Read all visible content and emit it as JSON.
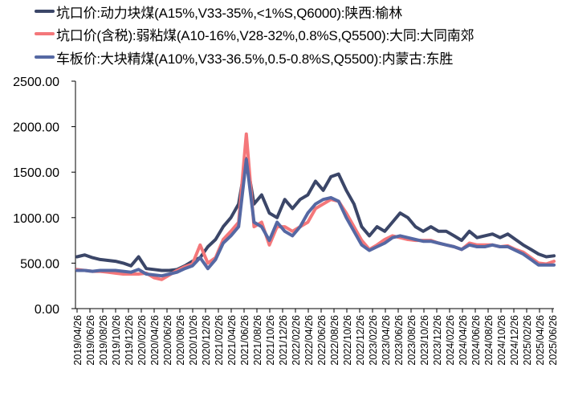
{
  "chart_data": {
    "type": "line",
    "title": "",
    "xlabel": "",
    "ylabel": "",
    "ylim": [
      0,
      2500
    ],
    "yticks": [
      "0.00",
      "500.00",
      "1000.00",
      "1500.00",
      "2000.00",
      "2500.00"
    ],
    "grid": false,
    "legend_position": "top",
    "x_tick_labels": [
      "2019/04/26",
      "2019/06/26",
      "2019/08/26",
      "2019/10/26",
      "2019/12/26",
      "2020/02/26",
      "2020/04/26",
      "2020/06/26",
      "2020/08/26",
      "2020/10/26",
      "2020/12/26",
      "2021/02/26",
      "2021/04/26",
      "2021/06/26",
      "2021/08/26",
      "2021/10/26",
      "2021/12/26",
      "2022/02/26",
      "2022/04/26",
      "2022/06/26",
      "2022/08/26",
      "2022/10/26",
      "2022/12/26",
      "2023/02/26",
      "2023/04/26",
      "2023/06/26",
      "2023/08/26",
      "2023/10/26",
      "2023/12/26",
      "2024/02/26",
      "2024/04/26",
      "2024/06/26",
      "2024/08/26",
      "2024/10/26",
      "2024/12/26",
      "2025/02/26",
      "2025/04/26",
      "2025/06/26"
    ],
    "x_months": [
      0,
      2,
      4,
      6,
      8,
      10,
      12,
      14,
      16,
      18,
      20,
      22,
      24,
      26,
      28,
      30,
      32,
      34,
      36,
      38,
      40,
      42,
      44,
      46,
      48,
      50,
      52,
      54,
      56,
      58,
      60,
      62,
      64,
      66,
      68,
      70,
      72,
      74,
      75
    ],
    "series": [
      {
        "name": "坑口价:动力块煤(A15%,V33-35%,<1%S,Q6000):陕西:榆林",
        "color": "#3b4668",
        "values": [
          570,
          590,
          560,
          540,
          530,
          520,
          500,
          470,
          570,
          440,
          430,
          420,
          420,
          430,
          470,
          520,
          560,
          680,
          760,
          900,
          1000,
          1150,
          1650,
          1150,
          1250,
          1050,
          1000,
          1200,
          1100,
          1200,
          1250,
          1400,
          1300,
          1450,
          1480,
          1300,
          1150,
          900,
          800,
          900,
          850,
          950,
          1050,
          1000,
          900,
          850,
          900,
          850,
          850,
          800,
          750,
          850,
          780,
          800,
          820,
          780,
          820,
          760,
          700,
          650,
          600,
          570,
          580
        ]
      },
      {
        "name": "坑口价(含税):弱粘煤(A10-16%,V28-32%,0.8%S,Q5500):大同:大同南郊",
        "color": "#f4777a",
        "values": [
          430,
          420,
          410,
          410,
          400,
          390,
          380,
          380,
          380,
          390,
          340,
          320,
          370,
          420,
          460,
          490,
          700,
          500,
          560,
          760,
          850,
          950,
          1920,
          900,
          950,
          700,
          900,
          900,
          850,
          900,
          950,
          1100,
          1150,
          1200,
          1180,
          1050,
          900,
          750,
          650,
          700,
          760,
          800,
          780,
          760,
          750,
          750,
          750,
          720,
          700,
          680,
          650,
          720,
          700,
          700,
          700,
          680,
          690,
          650,
          620,
          560,
          500,
          490,
          520
        ]
      },
      {
        "name": "车板价:大块精煤(A10%,V33-36.5%,0.5-0.8%S,Q5500):内蒙古:东胜",
        "color": "#5568a3",
        "values": [
          420,
          420,
          410,
          420,
          420,
          420,
          410,
          400,
          430,
          380,
          370,
          360,
          380,
          400,
          440,
          470,
          560,
          440,
          540,
          720,
          800,
          900,
          1640,
          950,
          900,
          750,
          950,
          850,
          800,
          900,
          1050,
          1150,
          1200,
          1220,
          1180,
          1000,
          850,
          700,
          640,
          680,
          720,
          780,
          800,
          780,
          760,
          740,
          740,
          720,
          700,
          680,
          650,
          700,
          680,
          680,
          700,
          680,
          680,
          640,
          600,
          540,
          480,
          480,
          480
        ]
      }
    ]
  },
  "legend": [
    {
      "label": "坑口价:动力块煤(A15%,V33-35%,<1%S,Q6000):陕西:榆林",
      "color": "#3b4668"
    },
    {
      "label": "坑口价(含税):弱粘煤(A10-16%,V28-32%,0.8%S,Q5500):大同:大同南郊",
      "color": "#f4777a"
    },
    {
      "label": "车板价:大块精煤(A10%,V33-36.5%,0.5-0.8%S,Q5500):内蒙古:东胜",
      "color": "#5568a3"
    }
  ]
}
